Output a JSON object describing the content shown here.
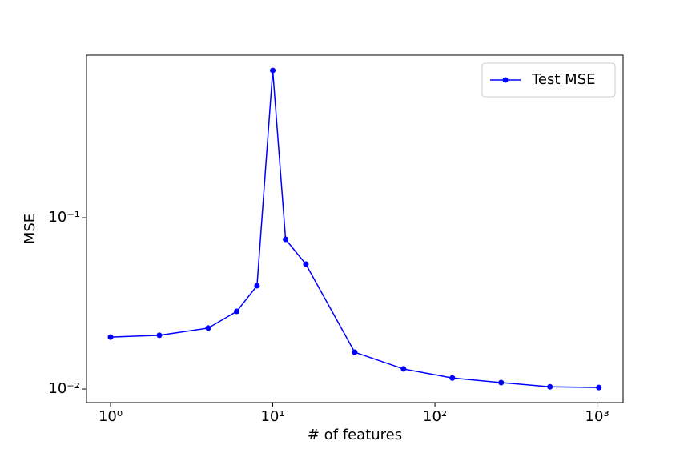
{
  "chart_data": {
    "type": "line",
    "x_label": "# of features",
    "y_label": "MSE",
    "xscale": "log",
    "yscale": "log",
    "legend": "upper right",
    "x": [
      1,
      2,
      4,
      6,
      8,
      10,
      12,
      16,
      32,
      64,
      128,
      256,
      512,
      1024
    ],
    "series": [
      {
        "name": "Test MSE",
        "color": "#0000ff",
        "values": [
          0.0201,
          0.0206,
          0.0227,
          0.0284,
          0.0401,
          0.724,
          0.0748,
          0.0536,
          0.0164,
          0.0131,
          0.0116,
          0.0109,
          0.0103,
          0.0102
        ]
      }
    ],
    "xlim": [
      0.711,
      1445
    ],
    "ylim": [
      0.00833,
      0.889
    ],
    "xticks": [
      {
        "value": 1,
        "label": "10⁰"
      },
      {
        "value": 10,
        "label": "10¹"
      },
      {
        "value": 100,
        "label": "10²"
      },
      {
        "value": 1000,
        "label": "10³"
      }
    ],
    "yticks": [
      {
        "value": 0.01,
        "label": "10⁻²"
      },
      {
        "value": 0.1,
        "label": "10⁻¹"
      }
    ]
  }
}
